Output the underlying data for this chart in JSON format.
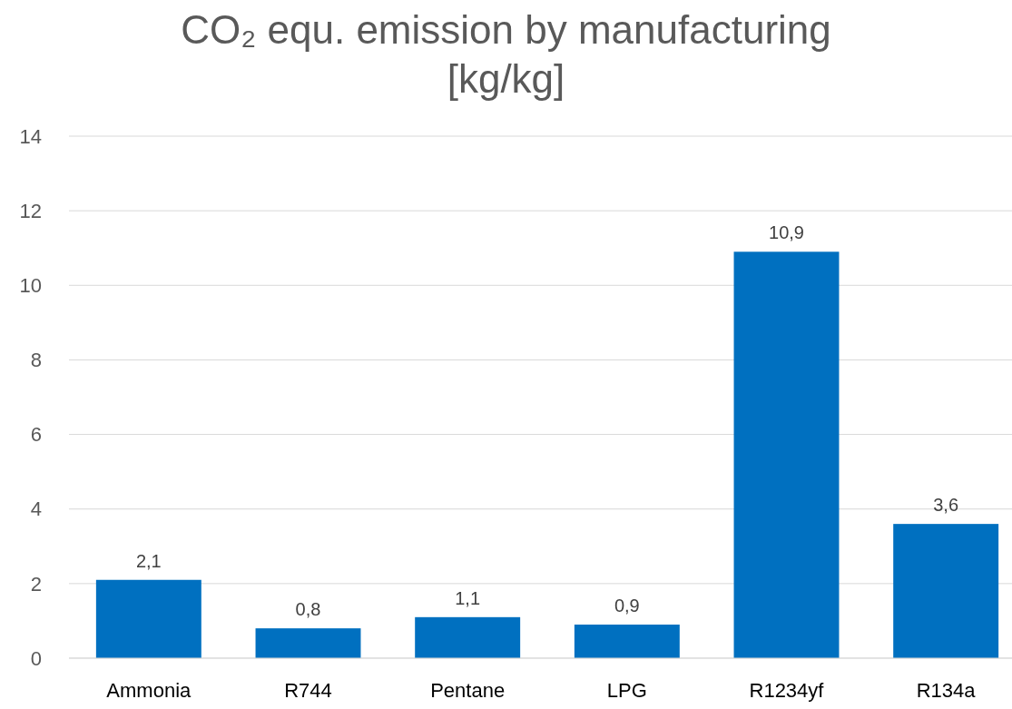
{
  "chart_data": {
    "type": "bar",
    "title": "CO₂ equ. emission by manufacturing [kg/kg]",
    "categories": [
      "Ammonia",
      "R744",
      "Pentane",
      "LPG",
      "R1234yf",
      "R134a"
    ],
    "values": [
      2.1,
      0.8,
      1.1,
      0.9,
      10.9,
      3.6
    ],
    "value_labels": [
      "2,1",
      "0,8",
      "1,1",
      "0,9",
      "10,9",
      "3,6"
    ],
    "color": "#0070c0",
    "ylim": [
      0,
      14
    ],
    "yticks": [
      0,
      2,
      4,
      6,
      8,
      10,
      12,
      14
    ],
    "grid": "y"
  }
}
